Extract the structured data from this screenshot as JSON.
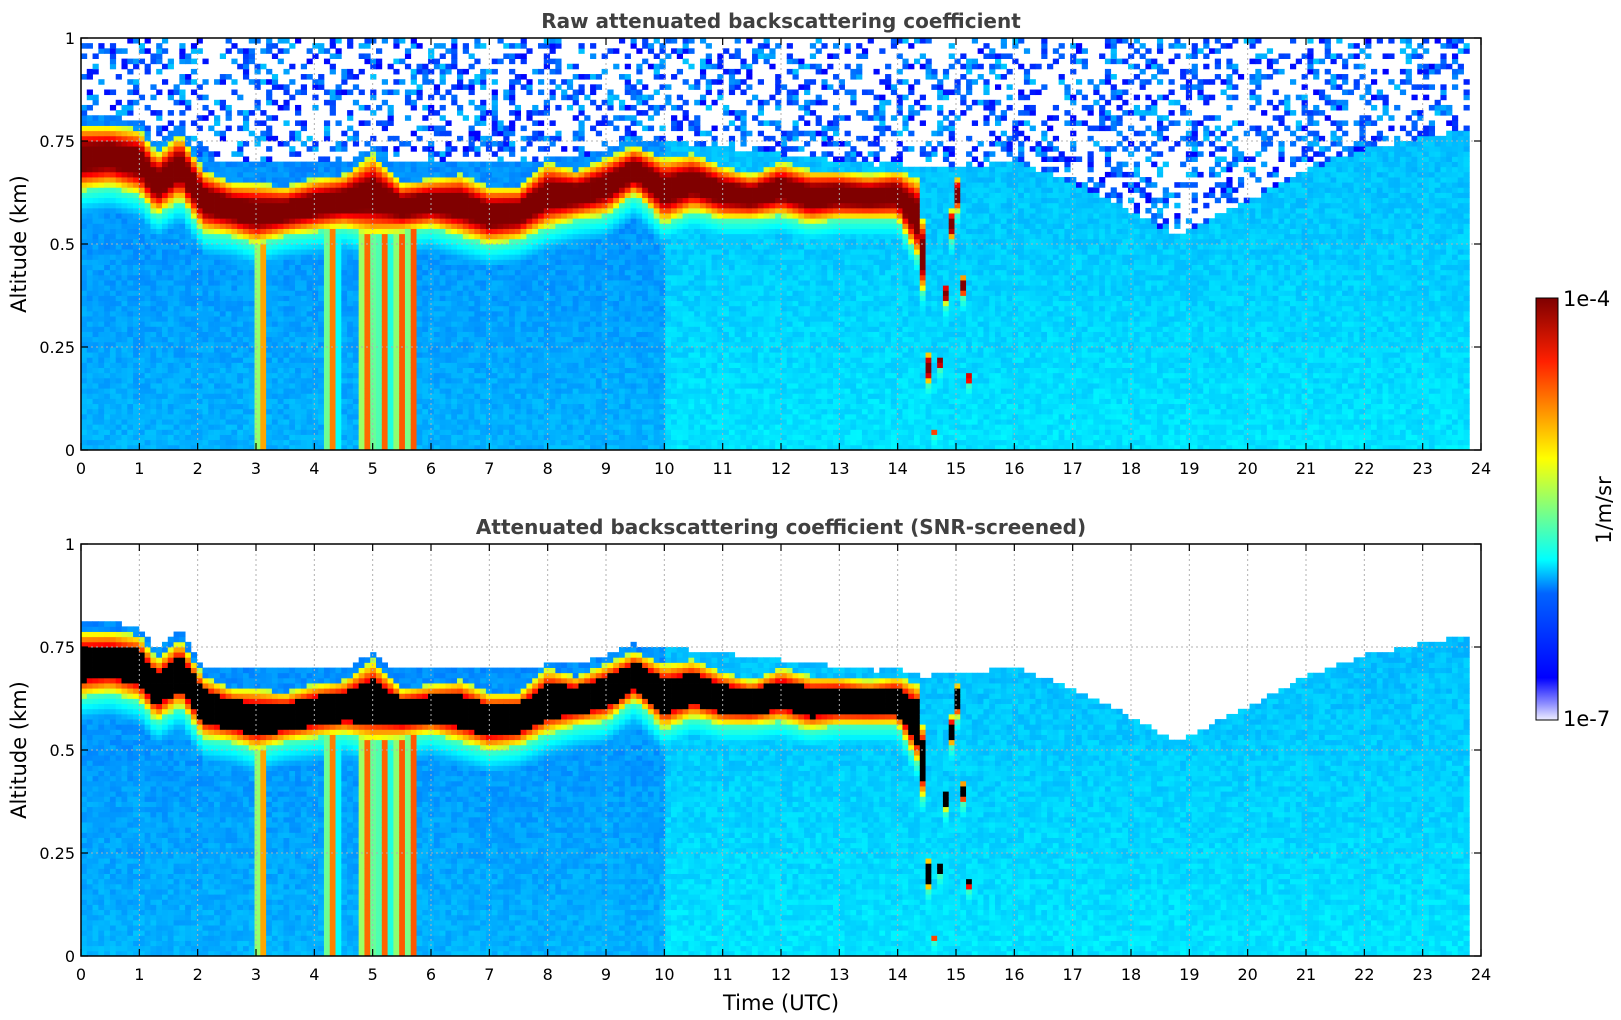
{
  "chart_data": [
    {
      "type": "heatmap",
      "title": "Raw attenuated backscattering coefficient",
      "xlabel": "",
      "ylabel": "Altitude (km)",
      "xlim": [
        0,
        24
      ],
      "ylim": [
        0,
        1
      ],
      "x_ticks": [
        "0",
        "1",
        "2",
        "3",
        "4",
        "5",
        "6",
        "7",
        "8",
        "9",
        "10",
        "11",
        "12",
        "13",
        "14",
        "15",
        "16",
        "17",
        "18",
        "19",
        "20",
        "21",
        "22",
        "23",
        "24"
      ],
      "y_ticks": [
        "0",
        "0.25",
        "0.5",
        "0.75",
        "1"
      ],
      "grid": true,
      "data_end_time": 23.8,
      "background_level": 0.3,
      "noise_above_layer": true,
      "cloud_layer": [
        {
          "t": 0.0,
          "bottom": 0.63,
          "top": 0.79
        },
        {
          "t": 0.5,
          "bottom": 0.64,
          "top": 0.79
        },
        {
          "t": 1.0,
          "bottom": 0.62,
          "top": 0.78
        },
        {
          "t": 1.3,
          "bottom": 0.57,
          "top": 0.72
        },
        {
          "t": 1.7,
          "bottom": 0.61,
          "top": 0.77
        },
        {
          "t": 2.1,
          "bottom": 0.53,
          "top": 0.68
        },
        {
          "t": 2.6,
          "bottom": 0.52,
          "top": 0.65
        },
        {
          "t": 3.0,
          "bottom": 0.5,
          "top": 0.65
        },
        {
          "t": 3.5,
          "bottom": 0.52,
          "top": 0.64
        },
        {
          "t": 4.0,
          "bottom": 0.53,
          "top": 0.66
        },
        {
          "t": 4.5,
          "bottom": 0.54,
          "top": 0.67
        },
        {
          "t": 5.0,
          "bottom": 0.52,
          "top": 0.72
        },
        {
          "t": 5.5,
          "bottom": 0.53,
          "top": 0.65
        },
        {
          "t": 6.0,
          "bottom": 0.54,
          "top": 0.66
        },
        {
          "t": 6.5,
          "bottom": 0.52,
          "top": 0.67
        },
        {
          "t": 7.0,
          "bottom": 0.5,
          "top": 0.64
        },
        {
          "t": 7.5,
          "bottom": 0.51,
          "top": 0.64
        },
        {
          "t": 8.0,
          "bottom": 0.54,
          "top": 0.7
        },
        {
          "t": 8.5,
          "bottom": 0.56,
          "top": 0.68
        },
        {
          "t": 9.0,
          "bottom": 0.57,
          "top": 0.71
        },
        {
          "t": 9.5,
          "bottom": 0.62,
          "top": 0.74
        },
        {
          "t": 10.0,
          "bottom": 0.55,
          "top": 0.71
        },
        {
          "t": 10.5,
          "bottom": 0.58,
          "top": 0.72
        },
        {
          "t": 11.0,
          "bottom": 0.56,
          "top": 0.69
        },
        {
          "t": 11.5,
          "bottom": 0.56,
          "top": 0.67
        },
        {
          "t": 12.0,
          "bottom": 0.57,
          "top": 0.7
        },
        {
          "t": 12.5,
          "bottom": 0.55,
          "top": 0.68
        },
        {
          "t": 13.0,
          "bottom": 0.56,
          "top": 0.68
        },
        {
          "t": 13.5,
          "bottom": 0.56,
          "top": 0.67
        },
        {
          "t": 14.0,
          "bottom": 0.56,
          "top": 0.68
        },
        {
          "t": 14.4,
          "bottom": 0.45,
          "top": 0.66
        },
        {
          "t": 14.6,
          "bottom": 0.0,
          "top": 0.0
        },
        {
          "t": 15.0,
          "bottom": 0.63,
          "top": 0.72
        },
        {
          "t": 15.3,
          "bottom": 0.0,
          "top": 0.0
        },
        {
          "t": 24.0,
          "bottom": 0.0,
          "top": 0.0
        }
      ],
      "noise_floor": [
        {
          "t": 0.0,
          "alt": 0.8
        },
        {
          "t": 2.0,
          "alt": 0.7
        },
        {
          "t": 8.0,
          "alt": 0.7
        },
        {
          "t": 10.0,
          "alt": 0.75
        },
        {
          "t": 14.5,
          "alt": 0.68
        },
        {
          "t": 16.0,
          "alt": 0.7
        },
        {
          "t": 17.0,
          "alt": 0.65
        },
        {
          "t": 18.0,
          "alt": 0.58
        },
        {
          "t": 18.8,
          "alt": 0.52
        },
        {
          "t": 19.5,
          "alt": 0.57
        },
        {
          "t": 20.2,
          "alt": 0.62
        },
        {
          "t": 21.0,
          "alt": 0.68
        },
        {
          "t": 22.0,
          "alt": 0.73
        },
        {
          "t": 23.8,
          "alt": 0.78
        }
      ],
      "precip_streaks": [
        {
          "t": 3.1,
          "width": 0.12
        },
        {
          "t": 4.3,
          "width": 0.12
        },
        {
          "t": 4.9,
          "width": 0.15
        },
        {
          "t": 5.2,
          "width": 0.12
        },
        {
          "t": 5.5,
          "width": 0.15
        },
        {
          "t": 5.7,
          "width": 0.08
        }
      ]
    },
    {
      "type": "heatmap",
      "title": "Attenuated backscattering coefficient (SNR-screened)",
      "xlabel": "Time (UTC)",
      "ylabel": "Altitude (km)",
      "xlim": [
        0,
        24
      ],
      "ylim": [
        0,
        1
      ],
      "x_ticks": [
        "0",
        "1",
        "2",
        "3",
        "4",
        "5",
        "6",
        "7",
        "8",
        "9",
        "10",
        "11",
        "12",
        "13",
        "14",
        "15",
        "16",
        "17",
        "18",
        "19",
        "20",
        "21",
        "22",
        "23",
        "24"
      ],
      "y_ticks": [
        "0",
        "0.25",
        "0.5",
        "0.75",
        "1"
      ],
      "grid": true,
      "saturated_color": "#000000",
      "screened_above_layer": true
    }
  ],
  "colorbar": {
    "label": "1/m/sr",
    "max_label": "1e-4",
    "min_label": "1e-7",
    "colormap": "jet"
  },
  "colors": {
    "title": "#404040",
    "grid": "#b0b0b0",
    "cloud_core": "#7f0000",
    "background_blue": "#1f4fff"
  }
}
